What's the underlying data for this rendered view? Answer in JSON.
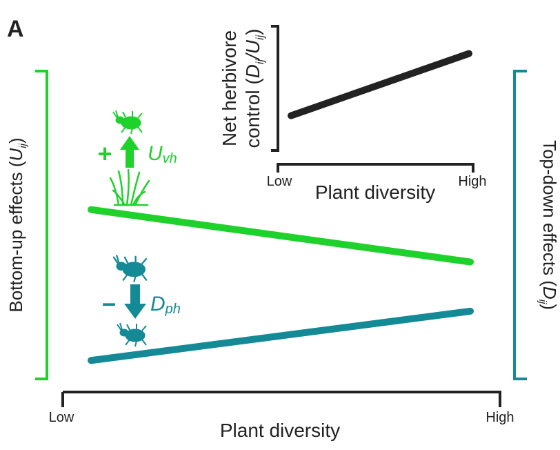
{
  "panel_label": "A",
  "colors": {
    "green": "#1fd12b",
    "teal": "#138a96",
    "black": "#222222"
  },
  "main": {
    "left_axis": {
      "label": "Bottom-up effects (",
      "symbol": "U",
      "sub": "ij",
      "close": ")"
    },
    "right_axis": {
      "label": "Top-down effects (",
      "symbol": "D",
      "sub": "ij",
      "close": ")"
    },
    "x_axis": {
      "label": "Plant diversity",
      "low": "Low",
      "high": "High"
    },
    "bottom_up_label": {
      "sign": "+",
      "symbol": "U",
      "sub": "vh"
    },
    "top_down_label": {
      "sign": "–",
      "symbol": "D",
      "sub": "ph"
    },
    "icons": [
      "herbivore-insect-icon",
      "grass-plant-icon",
      "predator-beetle-icon",
      "herbivore-insect-icon"
    ]
  },
  "inset": {
    "y_label_line1": "Net herbivore",
    "y_label_line2": "control (",
    "y_sym1": "D",
    "y_sub1": "ij",
    "y_slash": "/",
    "y_sym2": "U",
    "y_sub2": "ij",
    "y_close": ")",
    "x_axis": {
      "label": "Plant diversity",
      "low": "Low",
      "high": "High"
    }
  },
  "chart_data": [
    {
      "type": "line",
      "x": [
        "Low",
        "High"
      ],
      "series": [
        {
          "name": "Bottom-up effects (Uij)",
          "values": [
            0.55,
            0.38
          ]
        },
        {
          "name": "Top-down effects (Dij)",
          "values": [
            0.06,
            0.22
          ]
        }
      ],
      "xlabel": "Plant diversity",
      "ylim": [
        0,
        1
      ]
    },
    {
      "type": "line",
      "x": [
        "Low",
        "High"
      ],
      "series": [
        {
          "name": "Net herbivore control (Dij/Uij)",
          "values": [
            0.28,
            0.78
          ]
        }
      ],
      "xlabel": "Plant diversity",
      "ylabel": "Net herbivore control (Dij/Uij)",
      "ylim": [
        0,
        1
      ]
    }
  ]
}
